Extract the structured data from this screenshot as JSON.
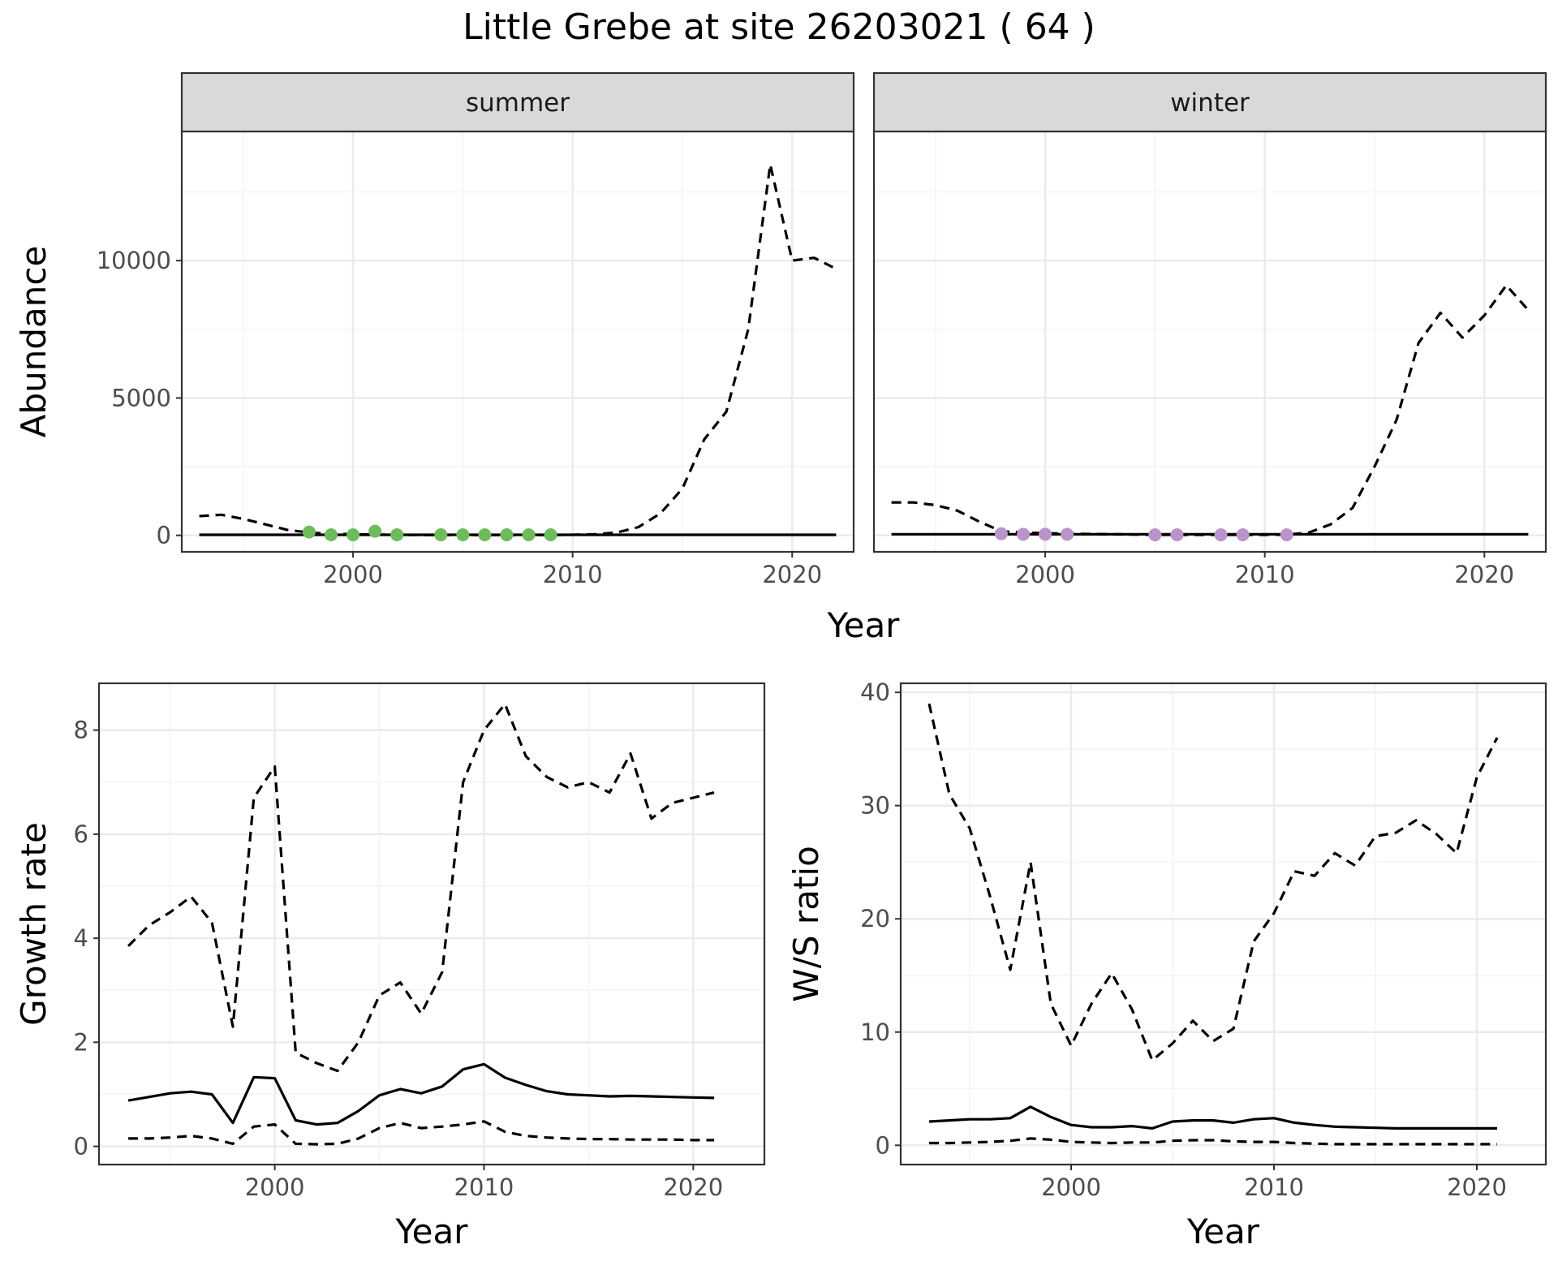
{
  "title": "Little Grebe at site 26203021 ( 64 )",
  "colors": {
    "summer_points": "#6cbd5a",
    "winter_points": "#b993c9",
    "line": "#000000",
    "grid_major": "#ebebeb",
    "grid_minor": "#f4f4f4",
    "strip_fill": "#d9d9d9",
    "panel_border": "#333333"
  },
  "chart_data": [
    {
      "type": "line",
      "facets": [
        "summer",
        "winter"
      ],
      "xlabel": "Year",
      "ylabel": "Abundance",
      "xlim": [
        1992.2,
        2022.8
      ],
      "ylim": [
        -600,
        14700
      ],
      "x_ticks": [
        2000,
        2010,
        2020
      ],
      "y_ticks": [
        0,
        5000,
        10000
      ],
      "grid": true,
      "legend": "none",
      "panels": [
        {
          "facet": "summer",
          "series": [
            {
              "style": "dashed",
              "x": [
                1993,
                1994,
                1995,
                1996,
                1997,
                1998,
                1999,
                2000,
                2001,
                2002,
                2003,
                2004,
                2005,
                2006,
                2007,
                2008,
                2009,
                2010,
                2011,
                2012,
                2013,
                2014,
                2015,
                2016,
                2017,
                2018,
                2019,
                2020,
                2021,
                2022
              ],
              "y": [
                700,
                750,
                600,
                400,
                200,
                100,
                60,
                40,
                30,
                20,
                15,
                12,
                10,
                10,
                10,
                12,
                15,
                20,
                40,
                100,
                300,
                800,
                1700,
                3500,
                4500,
                7500,
                13500,
                10000,
                10100,
                9700
              ]
            },
            {
              "style": "solid",
              "x": [
                1993,
                2022
              ],
              "y": [
                20,
                20
              ]
            },
            {
              "style": "points",
              "x": [
                1998,
                1999,
                2000,
                2001,
                2002,
                2004,
                2005,
                2006,
                2007,
                2008,
                2009
              ],
              "y": [
                120,
                20,
                20,
                150,
                20,
                20,
                20,
                20,
                20,
                20,
                20
              ]
            }
          ]
        },
        {
          "facet": "winter",
          "series": [
            {
              "style": "dashed",
              "x": [
                1993,
                1994,
                1995,
                1996,
                1997,
                1998,
                1999,
                2000,
                2001,
                2002,
                2003,
                2004,
                2005,
                2006,
                2007,
                2008,
                2009,
                2010,
                2011,
                2012,
                2013,
                2014,
                2015,
                2016,
                2017,
                2018,
                2019,
                2020,
                2021,
                2022
              ],
              "y": [
                1200,
                1200,
                1100,
                900,
                500,
                150,
                100,
                80,
                60,
                50,
                40,
                30,
                20,
                20,
                20,
                20,
                20,
                20,
                30,
                100,
                400,
                1000,
                2500,
                4200,
                7000,
                8100,
                7200,
                8000,
                9100,
                8200
              ]
            },
            {
              "style": "solid",
              "x": [
                1993,
                2022
              ],
              "y": [
                40,
                40
              ]
            },
            {
              "style": "points",
              "x": [
                1998,
                1999,
                2000,
                2001,
                2005,
                2006,
                2008,
                2009,
                2011
              ],
              "y": [
                60,
                40,
                40,
                40,
                20,
                20,
                20,
                20,
                20
              ]
            }
          ]
        }
      ]
    },
    {
      "type": "line",
      "xlabel": "Year",
      "ylabel": "Growth rate",
      "xlim": [
        1991.6,
        2023.4
      ],
      "ylim": [
        -0.35,
        8.9
      ],
      "x_ticks": [
        2000,
        2010,
        2020
      ],
      "y_ticks": [
        0,
        2,
        4,
        6,
        8
      ],
      "grid": true,
      "legend": "none",
      "series": [
        {
          "style": "dashed",
          "x": [
            1993,
            1994,
            1995,
            1996,
            1997,
            1998,
            1999,
            2000,
            2001,
            2002,
            2003,
            2004,
            2005,
            2006,
            2007,
            2008,
            2009,
            2010,
            2011,
            2012,
            2013,
            2014,
            2015,
            2016,
            2017,
            2018,
            2019,
            2020,
            2021
          ],
          "y": [
            3.85,
            4.25,
            4.5,
            4.8,
            4.3,
            2.3,
            6.7,
            7.3,
            1.8,
            1.6,
            1.45,
            2.0,
            2.9,
            3.15,
            2.55,
            3.35,
            7.0,
            8.0,
            8.5,
            7.5,
            7.1,
            6.9,
            7.0,
            6.8,
            7.55,
            6.3,
            6.6,
            6.7,
            6.8
          ]
        },
        {
          "style": "solid",
          "x": [
            1993,
            1994,
            1995,
            1996,
            1997,
            1998,
            1999,
            2000,
            2001,
            2002,
            2003,
            2004,
            2005,
            2006,
            2007,
            2008,
            2009,
            2010,
            2011,
            2012,
            2013,
            2014,
            2015,
            2016,
            2017,
            2018,
            2019,
            2020,
            2021
          ],
          "y": [
            0.88,
            0.95,
            1.02,
            1.05,
            1.0,
            0.45,
            1.33,
            1.31,
            0.5,
            0.42,
            0.45,
            0.68,
            0.98,
            1.1,
            1.02,
            1.15,
            1.48,
            1.58,
            1.32,
            1.18,
            1.06,
            1.0,
            0.98,
            0.96,
            0.97,
            0.96,
            0.95,
            0.94,
            0.93
          ]
        },
        {
          "style": "dashed",
          "x": [
            1993,
            1994,
            1995,
            1996,
            1997,
            1998,
            1999,
            2000,
            2001,
            2002,
            2003,
            2004,
            2005,
            2006,
            2007,
            2008,
            2009,
            2010,
            2011,
            2012,
            2013,
            2014,
            2015,
            2016,
            2017,
            2018,
            2019,
            2020,
            2021
          ],
          "y": [
            0.15,
            0.15,
            0.17,
            0.2,
            0.15,
            0.05,
            0.38,
            0.42,
            0.05,
            0.04,
            0.05,
            0.15,
            0.35,
            0.45,
            0.35,
            0.38,
            0.42,
            0.48,
            0.28,
            0.2,
            0.17,
            0.15,
            0.14,
            0.14,
            0.13,
            0.13,
            0.13,
            0.12,
            0.12
          ]
        }
      ]
    },
    {
      "type": "line",
      "xlabel": "Year",
      "ylabel": "W/S ratio",
      "xlim": [
        1991.6,
        2023.4
      ],
      "ylim": [
        -1.7,
        40.8
      ],
      "x_ticks": [
        2000,
        2010,
        2020
      ],
      "y_ticks": [
        0,
        10,
        20,
        30,
        40
      ],
      "grid": true,
      "legend": "none",
      "series": [
        {
          "style": "dashed",
          "x": [
            1993,
            1994,
            1995,
            1996,
            1997,
            1998,
            1999,
            2000,
            2001,
            2002,
            2003,
            2004,
            2005,
            2006,
            2007,
            2008,
            2009,
            2010,
            2011,
            2012,
            2013,
            2014,
            2015,
            2016,
            2017,
            2018,
            2019,
            2020,
            2021
          ],
          "y": [
            39,
            31,
            28,
            22,
            15.5,
            25,
            12.5,
            8.8,
            12.5,
            15.2,
            12.0,
            7.5,
            9.0,
            11.0,
            9.2,
            10.3,
            18.0,
            20.5,
            24.2,
            23.8,
            25.8,
            24.7,
            27.3,
            27.6,
            28.7,
            27.5,
            25.8,
            32.5,
            36.0
          ]
        },
        {
          "style": "solid",
          "x": [
            1993,
            1994,
            1995,
            1996,
            1997,
            1998,
            1999,
            2000,
            2001,
            2002,
            2003,
            2004,
            2005,
            2006,
            2007,
            2008,
            2009,
            2010,
            2011,
            2012,
            2013,
            2014,
            2015,
            2016,
            2017,
            2018,
            2019,
            2020,
            2021
          ],
          "y": [
            2.1,
            2.2,
            2.3,
            2.3,
            2.4,
            3.4,
            2.5,
            1.8,
            1.6,
            1.6,
            1.7,
            1.5,
            2.1,
            2.2,
            2.2,
            2.0,
            2.3,
            2.4,
            2.0,
            1.8,
            1.65,
            1.6,
            1.55,
            1.5,
            1.5,
            1.5,
            1.5,
            1.5,
            1.5
          ]
        },
        {
          "style": "dashed",
          "x": [
            1993,
            1994,
            1995,
            1996,
            1997,
            1998,
            1999,
            2000,
            2001,
            2002,
            2003,
            2004,
            2005,
            2006,
            2007,
            2008,
            2009,
            2010,
            2011,
            2012,
            2013,
            2014,
            2015,
            2016,
            2017,
            2018,
            2019,
            2020,
            2021
          ],
          "y": [
            0.2,
            0.2,
            0.25,
            0.3,
            0.4,
            0.6,
            0.5,
            0.3,
            0.25,
            0.2,
            0.25,
            0.25,
            0.4,
            0.45,
            0.45,
            0.35,
            0.3,
            0.3,
            0.2,
            0.15,
            0.1,
            0.1,
            0.1,
            0.1,
            0.1,
            0.1,
            0.1,
            0.1,
            0.1
          ]
        }
      ]
    }
  ]
}
